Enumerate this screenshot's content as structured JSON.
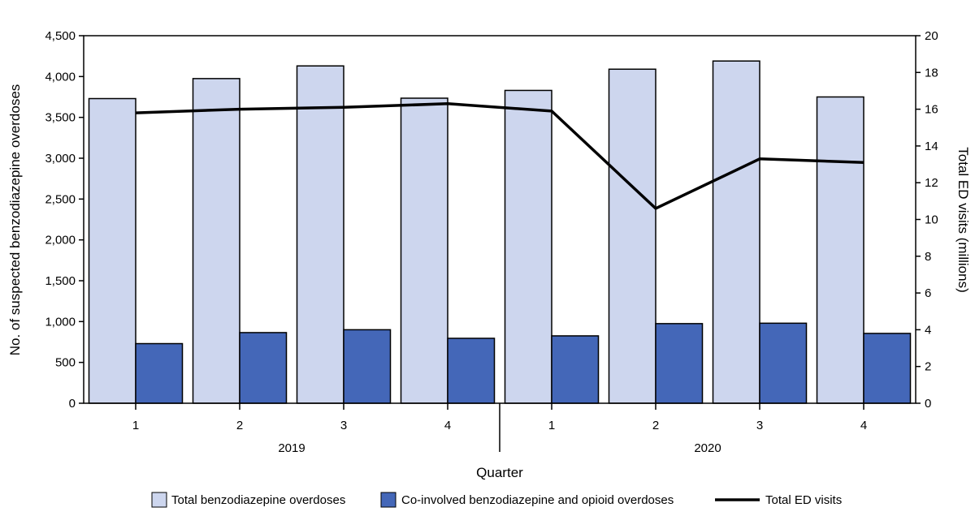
{
  "chart_data": {
    "type": "bar",
    "title": "",
    "xlabel": "Quarter",
    "ylabel": "No. of suspected benzodiazepine overdoses",
    "y2label": "Total ED visits (millions)",
    "ylim": [
      0,
      4500
    ],
    "y2lim": [
      0,
      20
    ],
    "yticks": [
      "0",
      "500",
      "1,000",
      "1,500",
      "2,000",
      "2,500",
      "3,000",
      "3,500",
      "4,000",
      "4,500"
    ],
    "y2ticks": [
      "0",
      "2",
      "4",
      "6",
      "8",
      "10",
      "12",
      "14",
      "16",
      "18",
      "20"
    ],
    "categories": [
      "1",
      "2",
      "3",
      "4",
      "1",
      "2",
      "3",
      "4"
    ],
    "years": [
      {
        "label": "2019",
        "span": [
          0,
          3
        ]
      },
      {
        "label": "2020",
        "span": [
          4,
          7
        ]
      }
    ],
    "series": [
      {
        "name": "Total benzodiazepine overdoses",
        "kind": "bar",
        "color": "#cdd6ee",
        "values": [
          3730,
          3975,
          4130,
          3735,
          3830,
          4090,
          4190,
          3750
        ]
      },
      {
        "name": "Co-involved benzodiazepine and opioid overdoses",
        "kind": "bar",
        "color": "#4467b8",
        "values": [
          730,
          865,
          900,
          795,
          825,
          975,
          980,
          855
        ]
      },
      {
        "name": "Total ED visits",
        "kind": "line",
        "axis": "right",
        "color": "#000000",
        "values": [
          15.8,
          16.0,
          16.1,
          16.3,
          15.9,
          10.6,
          13.3,
          13.1
        ]
      }
    ],
    "grid": false,
    "legend": "bottom"
  }
}
